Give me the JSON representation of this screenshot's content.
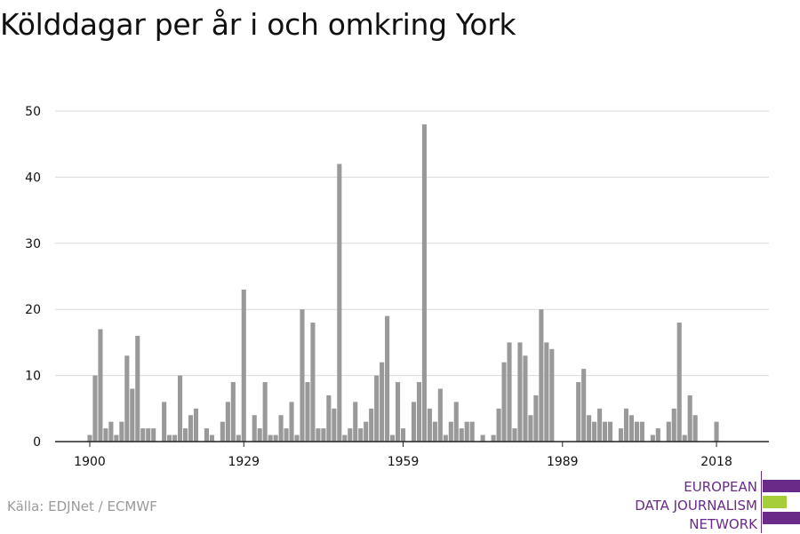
{
  "chart_data": {
    "type": "bar",
    "title": "Kölddagar per år i och omkring York",
    "xlabel": "",
    "ylabel": "",
    "x_start": 1900,
    "x_end": 2018,
    "values": [
      1,
      10,
      17,
      2,
      3,
      1,
      3,
      13,
      8,
      16,
      2,
      2,
      2,
      0,
      6,
      1,
      1,
      10,
      2,
      4,
      5,
      0,
      2,
      1,
      0,
      3,
      6,
      9,
      1,
      23,
      0,
      4,
      2,
      9,
      1,
      1,
      4,
      2,
      6,
      1,
      20,
      9,
      18,
      2,
      2,
      7,
      5,
      42,
      1,
      2,
      6,
      2,
      3,
      5,
      10,
      12,
      19,
      1,
      9,
      2,
      0,
      6,
      9,
      48,
      5,
      3,
      8,
      1,
      3,
      6,
      2,
      3,
      3,
      0,
      1,
      0,
      1,
      5,
      12,
      15,
      2,
      15,
      13,
      4,
      7,
      20,
      15,
      14,
      0,
      0,
      0,
      0,
      9,
      11,
      4,
      3,
      5,
      3,
      3,
      0,
      2,
      5,
      4,
      3,
      3,
      0,
      1,
      2,
      0,
      3,
      5,
      18,
      1,
      7,
      4,
      0,
      0,
      0,
      3,
      0
    ],
    "ylim": [
      0,
      50
    ],
    "yticks": [
      0,
      10,
      20,
      30,
      40,
      50
    ],
    "xtick_labels": [
      "1900",
      "1929",
      "1959",
      "1989",
      "2018"
    ],
    "bar_color": "#999999",
    "grid": true
  },
  "source": "Källa: EDJNet / ECMWF",
  "logo": {
    "lines": [
      "EUROPEAN",
      "DATA JOURNALISM",
      "NETWORK"
    ],
    "colors": [
      "#6a2a88",
      "#a6ce39",
      "#6a2a88"
    ]
  }
}
